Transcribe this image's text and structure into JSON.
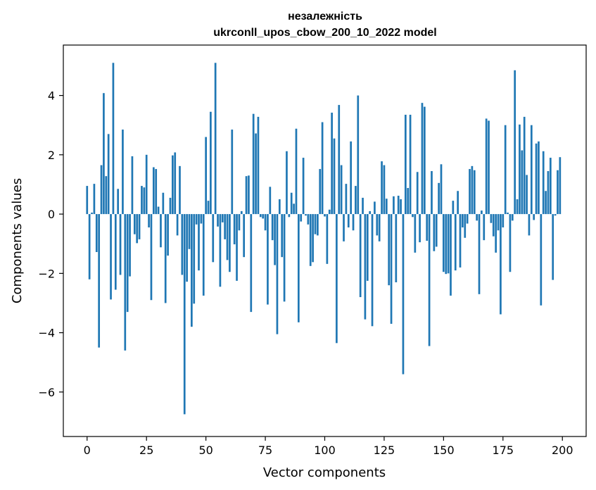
{
  "chart_data": {
    "type": "bar",
    "title": "незалежність",
    "subtitle": "ukrconll_upos_cbow_200_10_2022 model",
    "xlabel": "Vector components",
    "ylabel": "Components values",
    "xlim": [
      -10,
      210
    ],
    "ylim": [
      -7.5,
      5.7
    ],
    "xticks": [
      0,
      25,
      50,
      75,
      100,
      125,
      150,
      175,
      200
    ],
    "yticks": [
      -6,
      -4,
      -2,
      0,
      2,
      4
    ],
    "xtick_labels": [
      "0",
      "25",
      "50",
      "75",
      "100",
      "125",
      "150",
      "175",
      "200"
    ],
    "ytick_labels": [
      "−6",
      "−4",
      "−2",
      "0",
      "2",
      "4"
    ],
    "grid": false,
    "bar_color": "#1f77b4",
    "values": [
      0.95,
      -2.2,
      0.05,
      1.02,
      -1.28,
      -4.5,
      1.65,
      4.08,
      1.28,
      2.7,
      -2.88,
      5.1,
      -2.55,
      0.85,
      -2.05,
      2.85,
      -4.6,
      -3.3,
      -2.1,
      1.95,
      -0.68,
      -0.98,
      -0.85,
      0.95,
      0.9,
      2.0,
      -0.45,
      -2.9,
      1.58,
      1.52,
      0.25,
      -1.12,
      0.72,
      -3.0,
      -1.4,
      0.55,
      1.98,
      2.08,
      -0.72,
      1.62,
      -2.05,
      -6.75,
      -2.28,
      -1.18,
      -3.8,
      -3.02,
      -0.35,
      -1.9,
      -0.32,
      -2.75,
      2.6,
      0.45,
      3.45,
      -1.62,
      5.1,
      -0.42,
      -2.45,
      -0.28,
      -0.85,
      -1.55,
      -1.95,
      2.85,
      -1.02,
      -2.25,
      -0.55,
      0.1,
      -1.45,
      1.28,
      1.3,
      -3.3,
      3.38,
      2.72,
      3.28,
      -0.1,
      -0.15,
      -0.55,
      -3.05,
      0.92,
      -0.88,
      -1.72,
      -4.05,
      0.5,
      -1.45,
      -2.95,
      2.12,
      -0.1,
      0.72,
      0.35,
      2.88,
      -3.65,
      -0.25,
      1.9,
      -0.05,
      -0.35,
      -1.75,
      -1.62,
      -0.68,
      -0.72,
      1.52,
      3.1,
      -0.08,
      -1.68,
      0.15,
      3.42,
      2.55,
      -4.35,
      3.68,
      1.65,
      -0.92,
      1.02,
      -0.45,
      2.45,
      -0.55,
      0.95,
      4.0,
      -2.8,
      0.55,
      -3.55,
      -2.25,
      0.1,
      -3.78,
      0.42,
      -0.72,
      -0.92,
      1.78,
      1.65,
      0.52,
      -2.4,
      -3.7,
      0.6,
      -2.3,
      0.62,
      0.5,
      -5.4,
      3.35,
      0.88,
      3.35,
      -0.1,
      -1.3,
      1.42,
      -0.95,
      3.75,
      3.62,
      -0.9,
      -4.45,
      1.45,
      -1.25,
      -1.1,
      1.05,
      1.68,
      -1.95,
      -2.02,
      -2.0,
      -2.75,
      0.45,
      -1.9,
      0.78,
      -1.8,
      -0.45,
      -0.8,
      -0.32,
      1.52,
      1.62,
      1.48,
      -0.22,
      -2.7,
      0.12,
      -0.88,
      3.22,
      3.15,
      -0.3,
      -0.75,
      -1.3,
      -0.55,
      -3.38,
      -0.45,
      3.0,
      0.05,
      -1.95,
      -0.22,
      4.85,
      0.5,
      3.02,
      2.15,
      3.28,
      1.32,
      -0.72,
      3.0,
      -0.2,
      2.38,
      2.45,
      -3.08,
      2.12,
      0.78,
      1.45,
      1.9,
      -2.22,
      -0.05,
      1.48,
      1.92
    ]
  }
}
